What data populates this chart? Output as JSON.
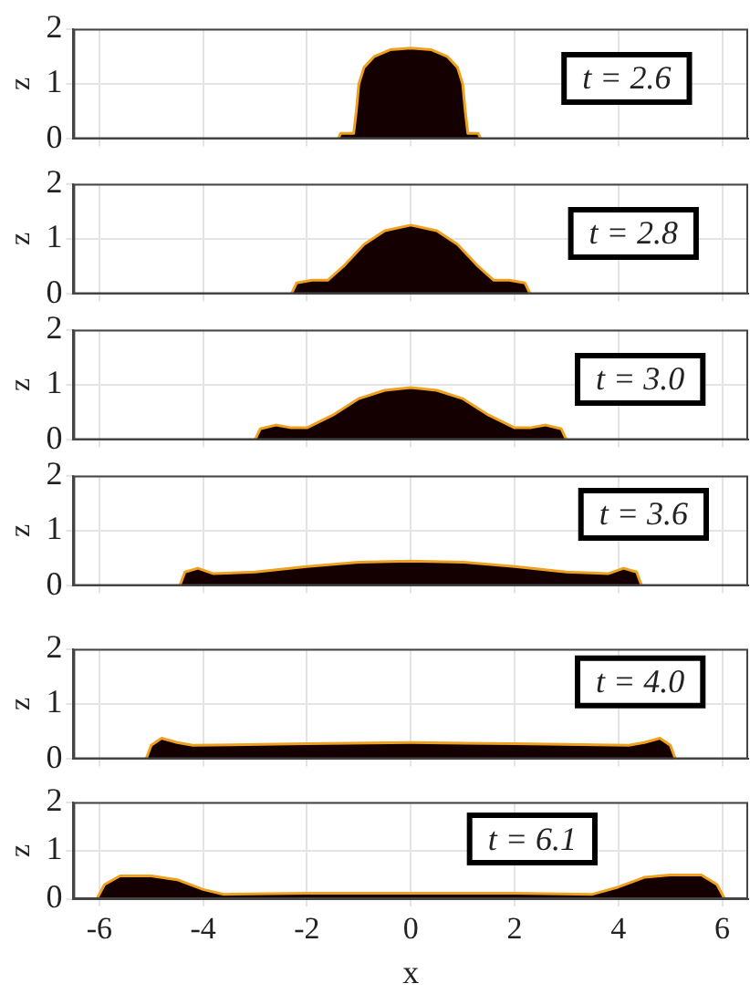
{
  "chart_data": [
    {
      "type": "area",
      "ylabel": "z",
      "x": [
        -1.4,
        -1.35,
        -1.1,
        -1.05,
        -1.0,
        -0.9,
        -0.7,
        -0.4,
        0,
        0.4,
        0.7,
        0.9,
        1.0,
        1.05,
        1.1,
        1.3,
        1.35
      ],
      "series": [
        {
          "color": "#140000",
          "values": [
            0,
            0.1,
            0.1,
            0.5,
            1.0,
            1.3,
            1.5,
            1.62,
            1.65,
            1.62,
            1.5,
            1.3,
            1.0,
            0.5,
            0.1,
            0.1,
            0
          ]
        }
      ],
      "xlim": [
        -6.5,
        6.5
      ],
      "xticks": [
        -6,
        -4,
        -2,
        0,
        2,
        4,
        6
      ],
      "ylim": [
        0,
        2
      ],
      "yticks": [
        0,
        1,
        2
      ],
      "grid": true,
      "tick_labels": "y",
      "marker": "none",
      "annotations": [
        "t = 2.6"
      ]
    },
    {
      "type": "area",
      "ylabel": "z",
      "x": [
        -2.3,
        -2.2,
        -1.9,
        -1.6,
        -1.3,
        -0.9,
        -0.5,
        0,
        0.5,
        0.9,
        1.3,
        1.6,
        1.9,
        2.2,
        2.3
      ],
      "series": [
        {
          "color": "#140000",
          "values": [
            0,
            0.2,
            0.25,
            0.25,
            0.5,
            0.9,
            1.15,
            1.25,
            1.15,
            0.9,
            0.5,
            0.25,
            0.25,
            0.2,
            0
          ]
        }
      ],
      "xlim": [
        -6.5,
        6.5
      ],
      "xticks": [
        -6,
        -4,
        -2,
        0,
        2,
        4,
        6
      ],
      "ylim": [
        0,
        2
      ],
      "yticks": [
        0,
        1,
        2
      ],
      "grid": true,
      "tick_labels": "y",
      "marker": "none",
      "annotations": [
        "t = 2.8"
      ]
    },
    {
      "type": "area",
      "ylabel": "z",
      "x": [
        -3.0,
        -2.9,
        -2.6,
        -2.3,
        -2.0,
        -1.5,
        -1.0,
        -0.5,
        0,
        0.5,
        1.0,
        1.5,
        2.0,
        2.3,
        2.6,
        2.9,
        3.0
      ],
      "series": [
        {
          "color": "#140000",
          "values": [
            0,
            0.2,
            0.27,
            0.22,
            0.22,
            0.45,
            0.75,
            0.9,
            0.95,
            0.9,
            0.75,
            0.45,
            0.22,
            0.22,
            0.27,
            0.2,
            0
          ]
        }
      ],
      "xlim": [
        -6.5,
        6.5
      ],
      "xticks": [
        -6,
        -4,
        -2,
        0,
        2,
        4,
        6
      ],
      "ylim": [
        0,
        2
      ],
      "yticks": [
        0,
        1,
        2
      ],
      "grid": true,
      "tick_labels": "y",
      "marker": "none",
      "annotations": [
        "t = 3.0"
      ]
    },
    {
      "type": "area",
      "ylabel": "z",
      "x": [
        -4.45,
        -4.35,
        -4.1,
        -3.8,
        -3,
        -2,
        -1,
        0,
        1,
        2,
        3,
        3.8,
        4.1,
        4.35,
        4.45
      ],
      "series": [
        {
          "color": "#140000",
          "values": [
            0,
            0.25,
            0.32,
            0.22,
            0.25,
            0.35,
            0.43,
            0.45,
            0.43,
            0.35,
            0.25,
            0.22,
            0.32,
            0.25,
            0
          ]
        }
      ],
      "xlim": [
        -6.5,
        6.5
      ],
      "xticks": [
        -6,
        -4,
        -2,
        0,
        2,
        4,
        6
      ],
      "ylim": [
        0,
        2
      ],
      "yticks": [
        0,
        1,
        2
      ],
      "grid": true,
      "tick_labels": "y",
      "marker": "none",
      "annotations": [
        "t = 3.6"
      ]
    },
    {
      "type": "area",
      "ylabel": "z",
      "x": [
        -5.1,
        -5.0,
        -4.8,
        -4.5,
        -4.2,
        -2,
        0,
        2,
        4.2,
        4.5,
        4.8,
        5.0,
        5.1
      ],
      "series": [
        {
          "color": "#140000",
          "values": [
            0,
            0.25,
            0.38,
            0.3,
            0.25,
            0.28,
            0.3,
            0.28,
            0.25,
            0.3,
            0.38,
            0.25,
            0
          ]
        }
      ],
      "xlim": [
        -6.5,
        6.5
      ],
      "xticks": [
        -6,
        -4,
        -2,
        0,
        2,
        4,
        6
      ],
      "ylim": [
        0,
        2
      ],
      "yticks": [
        0,
        1,
        2
      ],
      "grid": true,
      "tick_labels": "y",
      "marker": "none",
      "annotations": [
        "t = 4.0"
      ]
    },
    {
      "type": "area",
      "xlabel": "x",
      "ylabel": "z",
      "x": [
        -6.05,
        -5.9,
        -5.6,
        -5,
        -4.5,
        -4,
        -3.6,
        -2,
        0,
        2,
        3.5,
        4,
        4.5,
        5,
        5.6,
        5.9,
        6.05
      ],
      "series": [
        {
          "color": "#140000",
          "values": [
            0,
            0.3,
            0.48,
            0.48,
            0.4,
            0.2,
            0.1,
            0.12,
            0.12,
            0.12,
            0.1,
            0.25,
            0.45,
            0.5,
            0.5,
            0.3,
            0
          ]
        }
      ],
      "xlim": [
        -6.5,
        6.5
      ],
      "xticks": [
        -6,
        -4,
        -2,
        0,
        2,
        4,
        6
      ],
      "ylim": [
        0,
        2
      ],
      "yticks": [
        0,
        1,
        2
      ],
      "grid": true,
      "marker": "none",
      "annotations": [
        "t = 6.1"
      ]
    }
  ]
}
